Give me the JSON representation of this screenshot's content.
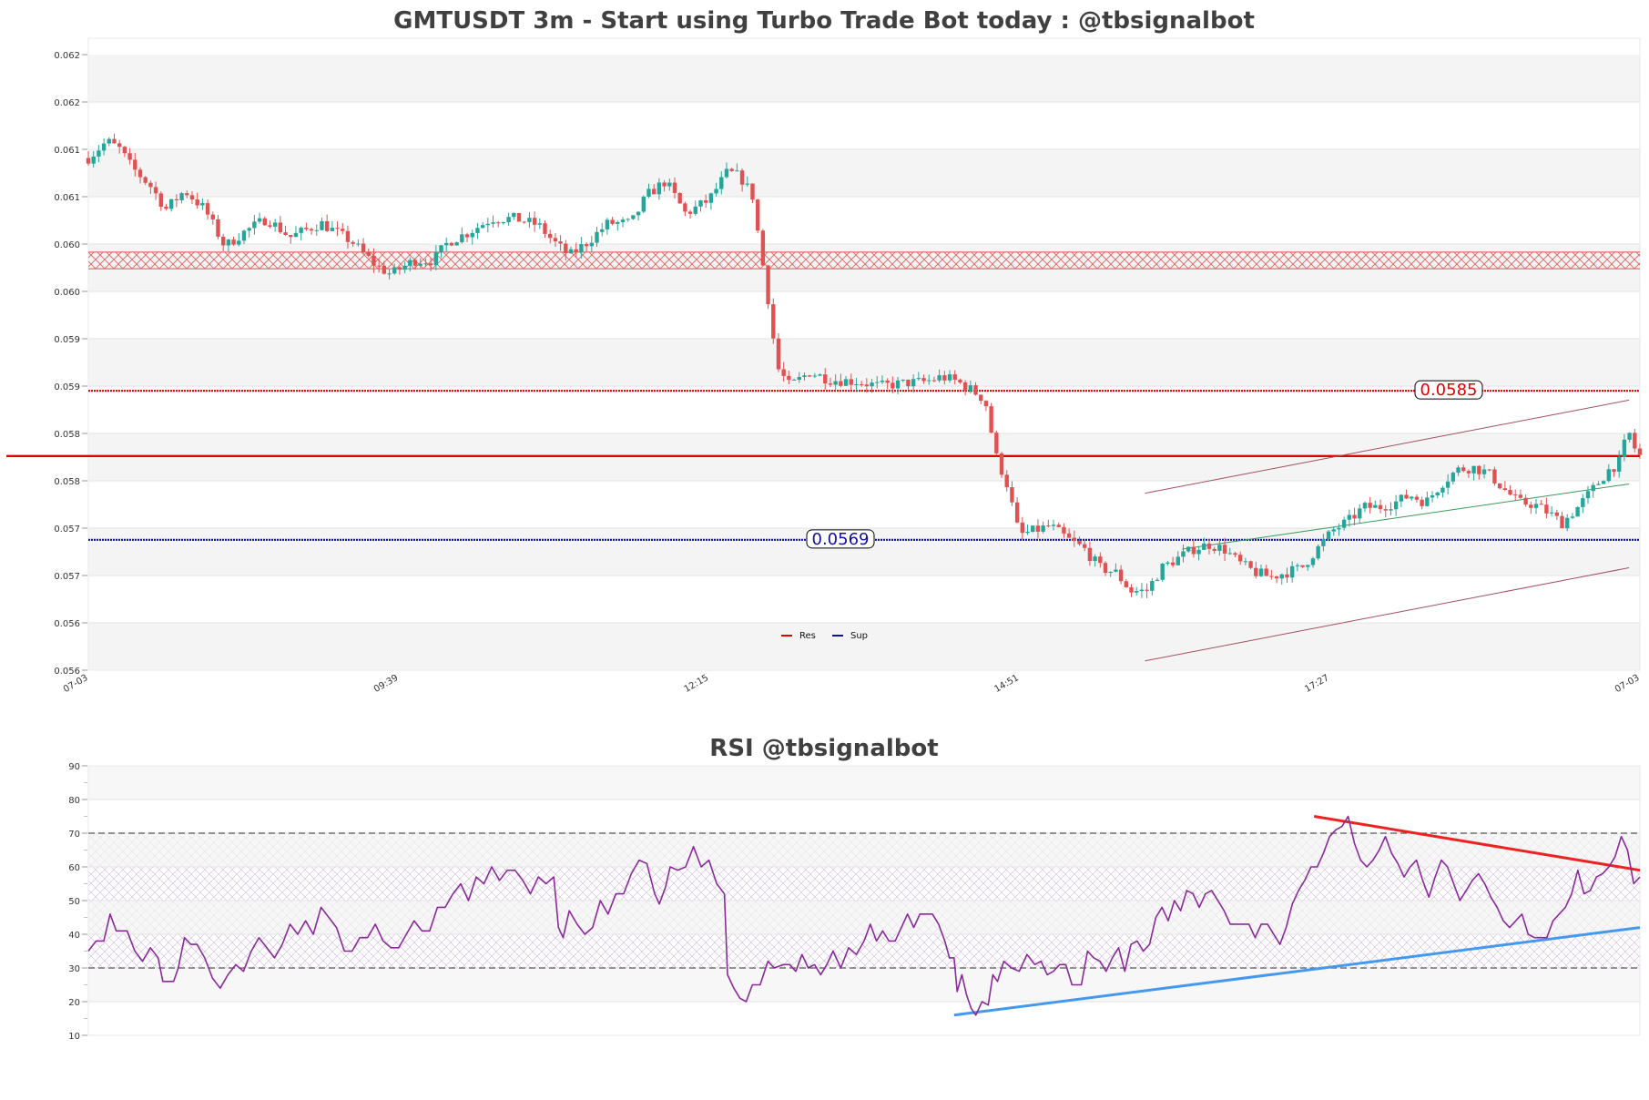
{
  "colors": {
    "up": "#26a69a",
    "down": "#e05252",
    "resistance": "#e00000",
    "support": "#1010a0",
    "rsi_line": "#8a2a9a",
    "rsi_trend_down": "#ee2222",
    "rsi_trend_up": "#4499ee",
    "channel": "#a05060",
    "channel_mid": "#3a9a5a",
    "band": "#f4f4f4"
  },
  "chart_data": [
    {
      "type": "candlestick",
      "title": "GMTUSDT 3m - Start using Turbo Trade Bot today : @tbsignalbot",
      "ylim": [
        0.0555,
        0.0621
      ],
      "y_tick_labels": [
        "0.056",
        "0.056",
        "0.057",
        "0.057",
        "0.058",
        "0.058",
        "0.059",
        "0.059",
        "0.060",
        "0.060",
        "0.061",
        "0.061",
        "0.062",
        "0.062"
      ],
      "x_tick_labels": [
        "07-03",
        "09:39",
        "12:15",
        "14:51",
        "17:27",
        "07-03"
      ],
      "legend": {
        "placement": "bottom-center",
        "entries": [
          "Res",
          "Sup"
        ]
      },
      "levels": {
        "resistance": 0.0585,
        "resistance_label": "0.0585",
        "support": 0.0569,
        "support_label": "0.0569",
        "upper_zone": [
          0.05985,
          0.05995
        ],
        "current_price_line": 0.0578
      },
      "channel": {
        "upper": [
          [
            0.681,
            0.0574
          ],
          [
            0.993,
            0.0584
          ]
        ],
        "lower": [
          [
            0.681,
            0.0556
          ],
          [
            0.993,
            0.0566
          ]
        ],
        "middle": [
          [
            0.705,
            0.0568
          ],
          [
            0.993,
            0.0575
          ]
        ]
      },
      "ohlc_anchors": [
        [
          0.0,
          0.061
        ],
        [
          0.012,
          0.06118
        ],
        [
          0.02,
          0.0611
        ],
        [
          0.028,
          0.0609
        ],
        [
          0.04,
          0.0607
        ],
        [
          0.05,
          0.06045
        ],
        [
          0.062,
          0.06065
        ],
        [
          0.075,
          0.06045
        ],
        [
          0.088,
          0.06005
        ],
        [
          0.1,
          0.0602
        ],
        [
          0.115,
          0.06035
        ],
        [
          0.13,
          0.06015
        ],
        [
          0.15,
          0.0603
        ],
        [
          0.17,
          0.0601
        ],
        [
          0.185,
          0.05985
        ],
        [
          0.195,
          0.05975
        ],
        [
          0.21,
          0.0599
        ],
        [
          0.222,
          0.0599
        ],
        [
          0.232,
          0.0601
        ],
        [
          0.245,
          0.0602
        ],
        [
          0.26,
          0.06035
        ],
        [
          0.275,
          0.06035
        ],
        [
          0.29,
          0.06028
        ],
        [
          0.3,
          0.0601
        ],
        [
          0.31,
          0.05995
        ],
        [
          0.322,
          0.0601
        ],
        [
          0.335,
          0.0603
        ],
        [
          0.35,
          0.0603
        ],
        [
          0.36,
          0.0606
        ],
        [
          0.372,
          0.06075
        ],
        [
          0.385,
          0.0604
        ],
        [
          0.4,
          0.06055
        ],
        [
          0.412,
          0.06085
        ],
        [
          0.42,
          0.0608
        ],
        [
          0.428,
          0.0606
        ],
        [
          0.432,
          0.06015
        ],
        [
          0.438,
          0.0595
        ],
        [
          0.444,
          0.05875
        ],
        [
          0.452,
          0.05855
        ],
        [
          0.465,
          0.0587
        ],
        [
          0.478,
          0.05862
        ],
        [
          0.495,
          0.0586
        ],
        [
          0.51,
          0.05855
        ],
        [
          0.525,
          0.05858
        ],
        [
          0.54,
          0.0586
        ],
        [
          0.55,
          0.05865
        ],
        [
          0.56,
          0.0586
        ],
        [
          0.57,
          0.0585
        ],
        [
          0.578,
          0.0584
        ],
        [
          0.585,
          0.0578
        ],
        [
          0.592,
          0.0575
        ],
        [
          0.6,
          0.05695
        ],
        [
          0.61,
          0.057
        ],
        [
          0.62,
          0.05705
        ],
        [
          0.632,
          0.0569
        ],
        [
          0.642,
          0.0568
        ],
        [
          0.652,
          0.0566
        ],
        [
          0.662,
          0.05655
        ],
        [
          0.672,
          0.05635
        ],
        [
          0.682,
          0.05635
        ],
        [
          0.692,
          0.0566
        ],
        [
          0.702,
          0.0567
        ],
        [
          0.712,
          0.0568
        ],
        [
          0.722,
          0.05685
        ],
        [
          0.732,
          0.0568
        ],
        [
          0.742,
          0.05665
        ],
        [
          0.752,
          0.05655
        ],
        [
          0.762,
          0.0565
        ],
        [
          0.772,
          0.05655
        ],
        [
          0.782,
          0.0566
        ],
        [
          0.792,
          0.0568
        ],
        [
          0.802,
          0.057
        ],
        [
          0.812,
          0.0571
        ],
        [
          0.822,
          0.05725
        ],
        [
          0.832,
          0.05725
        ],
        [
          0.842,
          0.0573
        ],
        [
          0.852,
          0.05738
        ],
        [
          0.862,
          0.0573
        ],
        [
          0.872,
          0.0575
        ],
        [
          0.882,
          0.05765
        ],
        [
          0.892,
          0.05768
        ],
        [
          0.902,
          0.05762
        ],
        [
          0.912,
          0.05745
        ],
        [
          0.922,
          0.0573
        ],
        [
          0.932,
          0.05728
        ],
        [
          0.942,
          0.05718
        ],
        [
          0.95,
          0.05708
        ],
        [
          0.96,
          0.05725
        ],
        [
          0.97,
          0.05745
        ],
        [
          0.98,
          0.05765
        ],
        [
          0.988,
          0.05775
        ],
        [
          0.992,
          0.0581
        ],
        [
          0.996,
          0.0579
        ],
        [
          1.0,
          0.0578
        ]
      ]
    },
    {
      "type": "line",
      "title": "RSI @tbsignalbot",
      "ylim": [
        10,
        90
      ],
      "y_ticks": [
        10,
        20,
        30,
        40,
        50,
        60,
        70,
        80,
        90
      ],
      "overbought": 70,
      "oversold": 30,
      "trendlines": {
        "resistance": [
          [
            0.79,
            75
          ],
          [
            1.0,
            59
          ]
        ],
        "support": [
          [
            0.558,
            16
          ],
          [
            1.0,
            42
          ]
        ]
      },
      "anchors": [
        [
          0.0,
          35
        ],
        [
          0.005,
          38
        ],
        [
          0.01,
          38
        ],
        [
          0.014,
          46
        ],
        [
          0.018,
          41
        ],
        [
          0.025,
          41
        ],
        [
          0.03,
          35
        ],
        [
          0.035,
          32
        ],
        [
          0.04,
          36
        ],
        [
          0.045,
          33
        ],
        [
          0.048,
          26
        ],
        [
          0.055,
          26
        ],
        [
          0.058,
          30
        ],
        [
          0.062,
          39
        ],
        [
          0.066,
          37
        ],
        [
          0.07,
          37
        ],
        [
          0.075,
          33
        ],
        [
          0.08,
          27
        ],
        [
          0.085,
          24
        ],
        [
          0.09,
          28
        ],
        [
          0.095,
          31
        ],
        [
          0.1,
          29
        ],
        [
          0.105,
          35
        ],
        [
          0.11,
          39
        ],
        [
          0.115,
          36
        ],
        [
          0.12,
          33
        ],
        [
          0.125,
          37
        ],
        [
          0.13,
          43
        ],
        [
          0.135,
          40
        ],
        [
          0.14,
          44
        ],
        [
          0.145,
          40
        ],
        [
          0.15,
          48
        ],
        [
          0.155,
          45
        ],
        [
          0.16,
          42
        ],
        [
          0.165,
          35
        ],
        [
          0.17,
          35
        ],
        [
          0.175,
          39
        ],
        [
          0.18,
          39
        ],
        [
          0.185,
          43
        ],
        [
          0.19,
          38
        ],
        [
          0.195,
          36
        ],
        [
          0.2,
          36
        ],
        [
          0.205,
          40
        ],
        [
          0.21,
          44
        ],
        [
          0.215,
          41
        ],
        [
          0.22,
          41
        ],
        [
          0.225,
          48
        ],
        [
          0.23,
          48
        ],
        [
          0.235,
          52
        ],
        [
          0.24,
          55
        ],
        [
          0.245,
          50
        ],
        [
          0.25,
          57
        ],
        [
          0.255,
          55
        ],
        [
          0.26,
          60
        ],
        [
          0.265,
          56
        ],
        [
          0.27,
          59
        ],
        [
          0.275,
          59
        ],
        [
          0.28,
          56
        ],
        [
          0.285,
          52
        ],
        [
          0.29,
          57
        ],
        [
          0.295,
          55
        ],
        [
          0.3,
          57
        ],
        [
          0.303,
          42
        ],
        [
          0.306,
          39
        ],
        [
          0.31,
          47
        ],
        [
          0.315,
          43
        ],
        [
          0.32,
          40
        ],
        [
          0.325,
          42
        ],
        [
          0.33,
          50
        ],
        [
          0.335,
          46
        ],
        [
          0.34,
          52
        ],
        [
          0.345,
          52
        ],
        [
          0.35,
          58
        ],
        [
          0.355,
          62
        ],
        [
          0.36,
          61
        ],
        [
          0.365,
          52
        ],
        [
          0.368,
          49
        ],
        [
          0.372,
          54
        ],
        [
          0.375,
          60
        ],
        [
          0.38,
          59
        ],
        [
          0.385,
          60
        ],
        [
          0.39,
          66
        ],
        [
          0.395,
          60
        ],
        [
          0.4,
          62
        ],
        [
          0.405,
          55
        ],
        [
          0.41,
          52
        ],
        [
          0.412,
          28
        ],
        [
          0.416,
          24
        ],
        [
          0.42,
          21
        ],
        [
          0.424,
          20
        ],
        [
          0.428,
          25
        ],
        [
          0.433,
          25
        ],
        [
          0.438,
          32
        ],
        [
          0.442,
          30
        ],
        [
          0.448,
          31
        ],
        [
          0.452,
          31
        ],
        [
          0.456,
          29
        ],
        [
          0.46,
          34
        ],
        [
          0.464,
          30
        ],
        [
          0.468,
          31
        ],
        [
          0.472,
          28
        ],
        [
          0.476,
          31
        ],
        [
          0.48,
          35
        ],
        [
          0.485,
          30
        ],
        [
          0.49,
          36
        ],
        [
          0.495,
          34
        ],
        [
          0.5,
          38
        ],
        [
          0.504,
          43
        ],
        [
          0.508,
          38
        ],
        [
          0.512,
          41
        ],
        [
          0.516,
          38
        ],
        [
          0.52,
          38
        ],
        [
          0.524,
          42
        ],
        [
          0.528,
          46
        ],
        [
          0.532,
          42
        ],
        [
          0.536,
          46
        ],
        [
          0.54,
          46
        ],
        [
          0.544,
          46
        ],
        [
          0.548,
          43
        ],
        [
          0.552,
          38
        ],
        [
          0.555,
          33
        ],
        [
          0.558,
          33
        ],
        [
          0.56,
          23
        ],
        [
          0.563,
          28
        ],
        [
          0.566,
          22
        ],
        [
          0.569,
          18
        ],
        [
          0.572,
          16
        ],
        [
          0.576,
          20
        ],
        [
          0.58,
          19
        ],
        [
          0.583,
          28
        ],
        [
          0.586,
          26
        ],
        [
          0.59,
          32
        ],
        [
          0.595,
          30
        ],
        [
          0.6,
          29
        ],
        [
          0.605,
          34
        ],
        [
          0.61,
          31
        ],
        [
          0.614,
          32
        ],
        [
          0.618,
          28
        ],
        [
          0.622,
          29
        ],
        [
          0.626,
          31
        ],
        [
          0.63,
          31
        ],
        [
          0.634,
          25
        ],
        [
          0.64,
          25
        ],
        [
          0.644,
          35
        ],
        [
          0.648,
          33
        ],
        [
          0.652,
          32
        ],
        [
          0.656,
          29
        ],
        [
          0.66,
          33
        ],
        [
          0.664,
          36
        ],
        [
          0.668,
          29
        ],
        [
          0.672,
          37
        ],
        [
          0.676,
          38
        ],
        [
          0.68,
          35
        ],
        [
          0.684,
          37
        ],
        [
          0.688,
          45
        ],
        [
          0.692,
          48
        ],
        [
          0.696,
          44
        ],
        [
          0.7,
          50
        ],
        [
          0.704,
          47
        ],
        [
          0.708,
          53
        ],
        [
          0.712,
          52
        ],
        [
          0.716,
          48
        ],
        [
          0.72,
          52
        ],
        [
          0.724,
          53
        ],
        [
          0.728,
          50
        ],
        [
          0.732,
          47
        ],
        [
          0.736,
          43
        ],
        [
          0.74,
          43
        ],
        [
          0.744,
          43
        ],
        [
          0.748,
          43
        ],
        [
          0.752,
          39
        ],
        [
          0.756,
          43
        ],
        [
          0.76,
          43
        ],
        [
          0.764,
          40
        ],
        [
          0.768,
          37
        ],
        [
          0.772,
          42
        ],
        [
          0.776,
          49
        ],
        [
          0.78,
          53
        ],
        [
          0.784,
          56
        ],
        [
          0.788,
          60
        ],
        [
          0.792,
          60
        ],
        [
          0.796,
          64
        ],
        [
          0.8,
          69
        ],
        [
          0.804,
          71
        ],
        [
          0.808,
          72
        ],
        [
          0.812,
          75
        ],
        [
          0.816,
          67
        ],
        [
          0.82,
          62
        ],
        [
          0.824,
          60
        ],
        [
          0.828,
          62
        ],
        [
          0.832,
          65
        ],
        [
          0.836,
          69
        ],
        [
          0.84,
          64
        ],
        [
          0.844,
          61
        ],
        [
          0.848,
          57
        ],
        [
          0.852,
          60
        ],
        [
          0.856,
          62
        ],
        [
          0.86,
          56
        ],
        [
          0.864,
          51
        ],
        [
          0.868,
          57
        ],
        [
          0.872,
          62
        ],
        [
          0.876,
          60
        ],
        [
          0.88,
          55
        ],
        [
          0.884,
          50
        ],
        [
          0.888,
          53
        ],
        [
          0.892,
          56
        ],
        [
          0.896,
          58
        ],
        [
          0.9,
          55
        ],
        [
          0.904,
          51
        ],
        [
          0.908,
          48
        ],
        [
          0.912,
          44
        ],
        [
          0.916,
          42
        ],
        [
          0.92,
          44
        ],
        [
          0.924,
          46
        ],
        [
          0.928,
          40
        ],
        [
          0.932,
          39
        ],
        [
          0.936,
          39
        ],
        [
          0.94,
          39
        ],
        [
          0.944,
          44
        ],
        [
          0.948,
          46
        ],
        [
          0.952,
          48
        ],
        [
          0.956,
          52
        ],
        [
          0.96,
          59
        ],
        [
          0.964,
          52
        ],
        [
          0.968,
          53
        ],
        [
          0.972,
          57
        ],
        [
          0.976,
          58
        ],
        [
          0.98,
          60
        ],
        [
          0.984,
          63
        ],
        [
          0.988,
          69
        ],
        [
          0.992,
          65
        ],
        [
          0.996,
          55
        ],
        [
          1.0,
          57
        ]
      ]
    }
  ]
}
